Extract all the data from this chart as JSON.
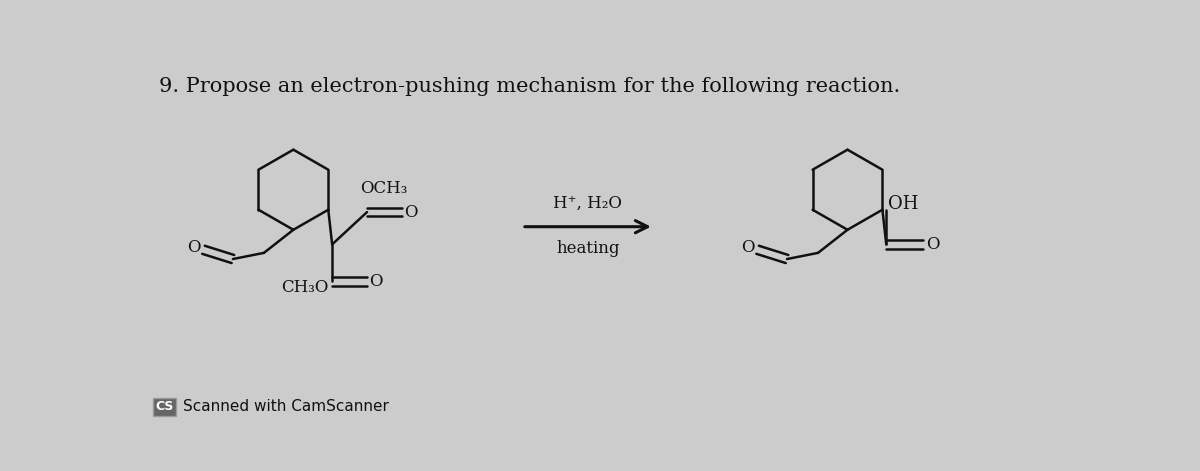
{
  "title": "9. Propose an electron-pushing mechanism for the following reaction.",
  "title_fontsize": 15,
  "background_color": "#cccccc",
  "line_color": "#111111",
  "text_color": "#111111",
  "arrow_label_line1": "H⁺, H₂O",
  "arrow_label_line2": "heating",
  "footer_text": "Scanned with CamScanner",
  "footer_box_label": "CS",
  "footer_box_color": "#666666",
  "footer_text_color": "#ffffff",
  "figsize": [
    12.0,
    4.71
  ],
  "dpi": 100
}
